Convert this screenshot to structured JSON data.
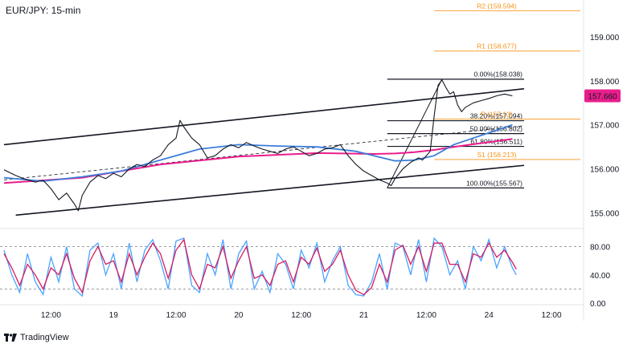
{
  "header": {
    "title": "EUR/JPY: 15-min"
  },
  "branding": {
    "logo_text": "TradingView"
  },
  "colors": {
    "price": "#131722",
    "ma_fast": "#3c7dd9",
    "ma_slow": "#e91e8c",
    "pivot": "#f7931a",
    "fib": "#131722",
    "stoch_k": "#4aa3ff",
    "stoch_d": "#d81b60",
    "last_price_bg": "#e91e8c"
  },
  "chart_data": {
    "type": "line",
    "symbol": "EUR/JPY",
    "timeframe": "15-min",
    "x_ticks": [
      "12:00",
      "19",
      "12:00",
      "20",
      "12:00",
      "21",
      "12:00",
      "24",
      "12:00"
    ],
    "price_axis": {
      "ticks": [
        "155.000",
        "156.000",
        "157.000",
        "158.000",
        "159.000"
      ],
      "ylim": [
        154.7,
        159.8
      ]
    },
    "last_price": {
      "label": "157.660",
      "value": 157.66
    },
    "price_series": {
      "name": "EUR/JPY",
      "points": [
        [
          0,
          155.98
        ],
        [
          3,
          155.85
        ],
        [
          5,
          155.78
        ],
        [
          8,
          155.7
        ],
        [
          10,
          155.74
        ],
        [
          12,
          155.55
        ],
        [
          14,
          155.3
        ],
        [
          16,
          155.45
        ],
        [
          18,
          155.2
        ],
        [
          19,
          155.05
        ],
        [
          20,
          155.4
        ],
        [
          22,
          155.7
        ],
        [
          24,
          155.85
        ],
        [
          26,
          155.78
        ],
        [
          28,
          155.9
        ],
        [
          30,
          155.82
        ],
        [
          32,
          156.0
        ],
        [
          34,
          156.1
        ],
        [
          36,
          156.05
        ],
        [
          38,
          156.2
        ],
        [
          40,
          156.3
        ],
        [
          42,
          156.55
        ],
        [
          44,
          156.7
        ],
        [
          45,
          157.1
        ],
        [
          46,
          156.95
        ],
        [
          48,
          156.7
        ],
        [
          50,
          156.55
        ],
        [
          52,
          156.25
        ],
        [
          54,
          156.3
        ],
        [
          56,
          156.45
        ],
        [
          58,
          156.55
        ],
        [
          60,
          156.48
        ],
        [
          62,
          156.6
        ],
        [
          64,
          156.52
        ],
        [
          66,
          156.45
        ],
        [
          68,
          156.4
        ],
        [
          70,
          156.35
        ],
        [
          72,
          156.45
        ],
        [
          74,
          156.5
        ],
        [
          76,
          156.4
        ],
        [
          78,
          156.3
        ],
        [
          80,
          156.35
        ],
        [
          82,
          156.45
        ],
        [
          84,
          156.48
        ],
        [
          86,
          156.55
        ],
        [
          88,
          156.3
        ],
        [
          90,
          156.1
        ],
        [
          92,
          155.95
        ],
        [
          94,
          155.85
        ],
        [
          96,
          155.75
        ],
        [
          98,
          155.68
        ],
        [
          99,
          155.62
        ],
        [
          100,
          155.78
        ],
        [
          102,
          156.0
        ],
        [
          104,
          156.15
        ],
        [
          106,
          156.25
        ],
        [
          107,
          156.2
        ],
        [
          108,
          156.3
        ],
        [
          109,
          156.4
        ],
        [
          110,
          157.2
        ],
        [
          111,
          157.9
        ],
        [
          112,
          158.02
        ],
        [
          113,
          157.85
        ],
        [
          114,
          157.7
        ],
        [
          115,
          157.75
        ],
        [
          116,
          157.45
        ],
        [
          117,
          157.3
        ],
        [
          118,
          157.4
        ],
        [
          120,
          157.5
        ],
        [
          122,
          157.55
        ],
        [
          124,
          157.6
        ],
        [
          126,
          157.66
        ],
        [
          128,
          157.7
        ],
        [
          130,
          157.66
        ]
      ]
    },
    "ma_fast": {
      "points": [
        [
          0,
          155.8
        ],
        [
          10,
          155.72
        ],
        [
          20,
          155.82
        ],
        [
          30,
          155.95
        ],
        [
          40,
          156.2
        ],
        [
          50,
          156.45
        ],
        [
          60,
          156.55
        ],
        [
          70,
          156.52
        ],
        [
          80,
          156.5
        ],
        [
          90,
          156.4
        ],
        [
          100,
          156.18
        ],
        [
          105,
          156.2
        ],
        [
          110,
          156.3
        ],
        [
          115,
          156.55
        ],
        [
          120,
          156.7
        ],
        [
          125,
          156.85
        ],
        [
          130,
          157.0
        ]
      ]
    },
    "ma_slow": {
      "points": [
        [
          0,
          155.68
        ],
        [
          20,
          155.8
        ],
        [
          40,
          156.1
        ],
        [
          60,
          156.28
        ],
        [
          80,
          156.36
        ],
        [
          95,
          156.34
        ],
        [
          100,
          156.35
        ],
        [
          105,
          156.38
        ],
        [
          110,
          156.43
        ],
        [
          115,
          156.5
        ],
        [
          120,
          156.56
        ],
        [
          125,
          156.62
        ],
        [
          130,
          156.68
        ]
      ]
    },
    "channel": {
      "upper": [
        [
          0,
          156.55
        ],
        [
          133,
          157.82
        ]
      ],
      "lower": [
        [
          3,
          154.95
        ],
        [
          133,
          156.08
        ]
      ],
      "mid": [
        [
          0,
          155.75
        ],
        [
          133,
          156.98
        ]
      ]
    },
    "fibonacci": {
      "levels": [
        {
          "label": "0.00%(158.038)",
          "value": 158.038
        },
        {
          "label": "38.20%(157.094)",
          "value": 157.094
        },
        {
          "label": "50.00%(156.802)",
          "value": 156.802
        },
        {
          "label": "61.80%(156.511)",
          "value": 156.511
        },
        {
          "label": "100.00%(155.567)",
          "value": 155.567
        }
      ],
      "x_range": [
        98,
        133
      ]
    },
    "pivots": [
      {
        "label": "R2 (159.594)",
        "value": 159.594
      },
      {
        "label": "R1 (158.677)",
        "value": 158.677
      },
      {
        "label": "P (157.13)",
        "value": 157.13
      },
      {
        "label": "S1 (156.213)",
        "value": 156.213
      }
    ],
    "oscillator": {
      "ticks": [
        "0.00",
        "40.00",
        "80.00"
      ],
      "levels": [
        20,
        80
      ],
      "ylim": [
        0,
        100
      ],
      "k": [
        [
          0,
          75
        ],
        [
          2,
          40
        ],
        [
          4,
          15
        ],
        [
          6,
          70
        ],
        [
          8,
          30
        ],
        [
          10,
          12
        ],
        [
          12,
          65
        ],
        [
          14,
          30
        ],
        [
          16,
          80
        ],
        [
          18,
          20
        ],
        [
          20,
          10
        ],
        [
          22,
          75
        ],
        [
          24,
          85
        ],
        [
          26,
          40
        ],
        [
          28,
          70
        ],
        [
          30,
          20
        ],
        [
          32,
          85
        ],
        [
          34,
          30
        ],
        [
          36,
          75
        ],
        [
          38,
          90
        ],
        [
          40,
          60
        ],
        [
          42,
          20
        ],
        [
          44,
          88
        ],
        [
          46,
          92
        ],
        [
          48,
          25
        ],
        [
          50,
          15
        ],
        [
          52,
          70
        ],
        [
          54,
          40
        ],
        [
          56,
          90
        ],
        [
          58,
          20
        ],
        [
          60,
          70
        ],
        [
          62,
          88
        ],
        [
          64,
          20
        ],
        [
          66,
          45
        ],
        [
          68,
          15
        ],
        [
          70,
          70
        ],
        [
          72,
          55
        ],
        [
          74,
          20
        ],
        [
          76,
          75
        ],
        [
          78,
          50
        ],
        [
          80,
          85
        ],
        [
          82,
          30
        ],
        [
          84,
          60
        ],
        [
          86,
          80
        ],
        [
          88,
          25
        ],
        [
          90,
          12
        ],
        [
          92,
          10
        ],
        [
          94,
          30
        ],
        [
          96,
          70
        ],
        [
          98,
          20
        ],
        [
          100,
          85
        ],
        [
          102,
          80
        ],
        [
          104,
          40
        ],
        [
          106,
          90
        ],
        [
          108,
          30
        ],
        [
          110,
          92
        ],
        [
          112,
          80
        ],
        [
          114,
          40
        ],
        [
          116,
          60
        ],
        [
          118,
          20
        ],
        [
          120,
          80
        ],
        [
          122,
          60
        ],
        [
          124,
          90
        ],
        [
          126,
          50
        ],
        [
          128,
          80
        ],
        [
          130,
          50
        ],
        [
          131,
          40
        ]
      ],
      "d": [
        [
          0,
          70
        ],
        [
          2,
          50
        ],
        [
          4,
          25
        ],
        [
          6,
          55
        ],
        [
          8,
          40
        ],
        [
          10,
          20
        ],
        [
          12,
          50
        ],
        [
          14,
          40
        ],
        [
          16,
          70
        ],
        [
          18,
          35
        ],
        [
          20,
          15
        ],
        [
          22,
          60
        ],
        [
          24,
          80
        ],
        [
          26,
          55
        ],
        [
          28,
          60
        ],
        [
          30,
          30
        ],
        [
          32,
          70
        ],
        [
          34,
          40
        ],
        [
          36,
          65
        ],
        [
          38,
          85
        ],
        [
          40,
          70
        ],
        [
          42,
          35
        ],
        [
          44,
          75
        ],
        [
          46,
          90
        ],
        [
          48,
          40
        ],
        [
          50,
          20
        ],
        [
          52,
          55
        ],
        [
          54,
          50
        ],
        [
          56,
          80
        ],
        [
          58,
          35
        ],
        [
          60,
          60
        ],
        [
          62,
          80
        ],
        [
          64,
          35
        ],
        [
          66,
          40
        ],
        [
          68,
          25
        ],
        [
          70,
          55
        ],
        [
          72,
          60
        ],
        [
          74,
          30
        ],
        [
          76,
          65
        ],
        [
          78,
          55
        ],
        [
          80,
          78
        ],
        [
          82,
          45
        ],
        [
          84,
          55
        ],
        [
          86,
          75
        ],
        [
          88,
          40
        ],
        [
          90,
          18
        ],
        [
          92,
          12
        ],
        [
          94,
          22
        ],
        [
          96,
          55
        ],
        [
          98,
          30
        ],
        [
          100,
          75
        ],
        [
          102,
          82
        ],
        [
          104,
          55
        ],
        [
          106,
          80
        ],
        [
          108,
          45
        ],
        [
          110,
          85
        ],
        [
          112,
          85
        ],
        [
          114,
          55
        ],
        [
          116,
          55
        ],
        [
          118,
          30
        ],
        [
          120,
          70
        ],
        [
          122,
          65
        ],
        [
          124,
          85
        ],
        [
          126,
          65
        ],
        [
          128,
          75
        ],
        [
          130,
          58
        ],
        [
          131,
          48
        ]
      ]
    }
  }
}
